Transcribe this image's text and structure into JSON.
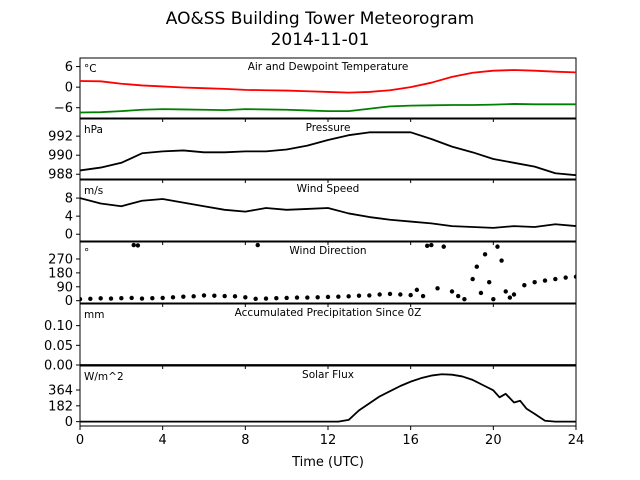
{
  "figure": {
    "title": "AO&SS Building Tower Meteorogram",
    "subtitle": "2014-11-01",
    "xlabel": "Time (UTC)",
    "x_range": [
      0,
      24
    ],
    "x_ticks": [
      0,
      4,
      8,
      12,
      16,
      20,
      24
    ]
  },
  "chart_data": [
    {
      "type": "line",
      "title": "Air and Dewpoint Temperature",
      "unit_label": "°C",
      "ylim": [
        -9.0,
        8.5
      ],
      "y_ticks": [
        6,
        0,
        -6
      ],
      "y_tick_labels": [
        "6",
        "0",
        "−6"
      ],
      "series": [
        {
          "color": "#ff0000",
          "x": [
            0,
            1,
            2,
            3,
            4,
            5,
            6,
            7,
            8,
            9,
            10,
            11,
            12,
            13,
            14,
            15,
            16,
            17,
            18,
            19,
            20,
            21,
            22,
            23,
            24
          ],
          "values": [
            1.8,
            1.7,
            1.0,
            0.5,
            0.2,
            -0.1,
            -0.3,
            -0.5,
            -0.8,
            -0.9,
            -1.0,
            -1.2,
            -1.4,
            -1.6,
            -1.4,
            -0.9,
            0.0,
            1.3,
            3.0,
            4.2,
            4.8,
            5.0,
            4.8,
            4.5,
            4.3
          ]
        },
        {
          "color": "#008000",
          "x": [
            0,
            1,
            2,
            3,
            4,
            5,
            6,
            7,
            8,
            9,
            10,
            11,
            12,
            13,
            14,
            15,
            16,
            17,
            18,
            19,
            20,
            21,
            22,
            23,
            24
          ],
          "values": [
            -7.4,
            -7.3,
            -7.0,
            -6.6,
            -6.4,
            -6.5,
            -6.6,
            -6.7,
            -6.4,
            -6.5,
            -6.6,
            -6.8,
            -7.0,
            -7.0,
            -6.3,
            -5.6,
            -5.4,
            -5.3,
            -5.2,
            -5.2,
            -5.1,
            -4.9,
            -5.0,
            -5.0,
            -5.0
          ]
        }
      ]
    },
    {
      "type": "line",
      "title": "Pressure",
      "unit_label": "hPa",
      "ylim": [
        987.5,
        993.8
      ],
      "y_ticks": [
        992,
        990,
        988
      ],
      "y_tick_labels": [
        "992",
        "990",
        "988"
      ],
      "series": [
        {
          "color": "#000000",
          "x": [
            0,
            1,
            2,
            3,
            4,
            5,
            6,
            7,
            8,
            9,
            10,
            11,
            12,
            13,
            14,
            15,
            16,
            17,
            18,
            19,
            20,
            21,
            22,
            23,
            24
          ],
          "values": [
            988.4,
            988.7,
            989.2,
            990.2,
            990.4,
            990.5,
            990.3,
            990.3,
            990.4,
            990.4,
            990.6,
            991.0,
            991.6,
            992.1,
            992.4,
            992.4,
            992.4,
            991.7,
            990.9,
            990.3,
            989.6,
            989.2,
            988.8,
            988.1,
            987.9
          ]
        }
      ]
    },
    {
      "type": "line",
      "title": "Wind Speed",
      "unit_label": "m/s",
      "ylim": [
        -1.5,
        12.0
      ],
      "y_ticks": [
        8,
        4,
        0
      ],
      "y_tick_labels": [
        "8",
        "4",
        "0"
      ],
      "series": [
        {
          "color": "#000000",
          "x": [
            0,
            1,
            2,
            3,
            4,
            5,
            6,
            7,
            8,
            9,
            10,
            11,
            12,
            13,
            14,
            15,
            16,
            17,
            18,
            19,
            20,
            21,
            22,
            23,
            24
          ],
          "values": [
            8.0,
            6.8,
            6.2,
            7.4,
            7.8,
            7.0,
            6.2,
            5.4,
            5.0,
            5.8,
            5.4,
            5.6,
            5.8,
            4.6,
            3.8,
            3.2,
            2.8,
            2.4,
            1.8,
            1.6,
            1.4,
            1.8,
            1.6,
            2.2,
            1.8
          ]
        }
      ]
    },
    {
      "type": "scatter",
      "title": "Wind Direction",
      "unit_label": "°",
      "ylim": [
        -15,
        380
      ],
      "y_ticks": [
        270,
        180,
        90,
        0
      ],
      "y_tick_labels": [
        "270",
        "180",
        "90",
        "0"
      ],
      "series": [
        {
          "color": "#000000",
          "x": [
            0,
            0.5,
            1,
            1.5,
            2,
            2.5,
            2.6,
            2.8,
            3,
            3.5,
            4,
            4.5,
            5,
            5.5,
            6,
            6.5,
            7,
            7.5,
            8,
            8.5,
            8.6,
            9,
            9.5,
            10,
            10.5,
            11,
            11.5,
            12,
            12.5,
            13,
            13.5,
            14,
            14.5,
            15,
            15.5,
            16,
            16.3,
            16.6,
            16.8,
            17,
            17.3,
            17.6,
            18,
            18.3,
            18.6,
            19,
            19.2,
            19.4,
            19.6,
            19.8,
            20,
            20.2,
            20.4,
            20.6,
            20.8,
            21,
            21.5,
            22,
            22.5,
            23,
            23.5,
            24
          ],
          "values": [
            10,
            12,
            15,
            14,
            16,
            18,
            360,
            358,
            14,
            16,
            18,
            22,
            26,
            28,
            34,
            32,
            30,
            28,
            22,
            12,
            360,
            14,
            16,
            18,
            20,
            20,
            22,
            24,
            26,
            28,
            32,
            34,
            40,
            44,
            40,
            36,
            70,
            30,
            355,
            360,
            80,
            350,
            60,
            30,
            10,
            140,
            220,
            50,
            300,
            120,
            10,
            350,
            260,
            60,
            20,
            40,
            100,
            120,
            130,
            140,
            150,
            155
          ]
        }
      ]
    },
    {
      "type": "line",
      "title": "Accumulated Precipitation Since 0Z",
      "unit_label": "mm",
      "ylim": [
        0,
        0.155
      ],
      "y_ticks": [
        0.1,
        0.05,
        0.0
      ],
      "y_tick_labels": [
        "0.10",
        "0.05",
        "0.00"
      ],
      "series": [
        {
          "color": "#000000",
          "x": [
            0,
            24
          ],
          "values": [
            0,
            0
          ]
        }
      ]
    },
    {
      "type": "line",
      "title": "Solar Flux",
      "unit_label": "W/m^2",
      "ylim": [
        -50,
        640
      ],
      "y_ticks": [
        364,
        182,
        0
      ],
      "y_tick_labels": [
        "364",
        "182",
        "0"
      ],
      "series": [
        {
          "color": "#000000",
          "x": [
            0,
            12.5,
            13.0,
            13.5,
            14,
            14.5,
            15,
            15.5,
            16,
            16.5,
            17,
            17.5,
            18,
            18.5,
            19,
            19.5,
            20,
            20.3,
            20.6,
            21,
            21.3,
            21.6,
            22,
            22.5,
            23,
            24
          ],
          "values": [
            0,
            0,
            20,
            130,
            210,
            290,
            350,
            410,
            460,
            500,
            530,
            545,
            540,
            520,
            480,
            420,
            360,
            280,
            320,
            220,
            240,
            150,
            90,
            10,
            0,
            0
          ]
        }
      ]
    }
  ]
}
